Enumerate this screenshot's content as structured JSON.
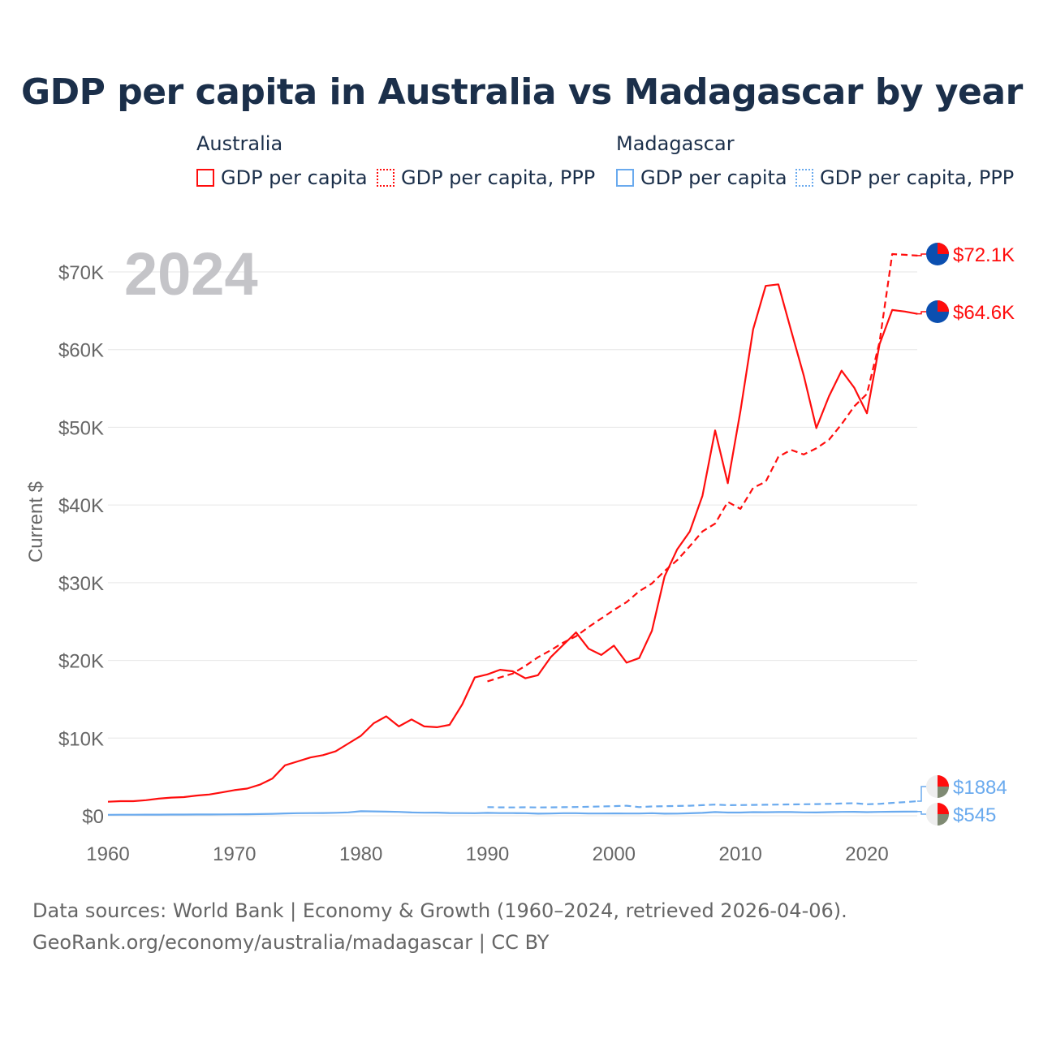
{
  "title": "GDP per capita in Australia vs Madagascar by year",
  "legend": {
    "groups": [
      {
        "name": "Australia",
        "items": [
          "GDP per capita",
          "GDP per capita, PPP"
        ],
        "color": "#ff0d0d"
      },
      {
        "name": "Madagascar",
        "items": [
          "GDP per capita",
          "GDP per capita, PPP"
        ],
        "color": "#6aaaee"
      }
    ]
  },
  "footer": [
    "Data sources: World Bank | Economy & Growth (1960–2024, retrieved 2026-04-06).",
    "GeoRank.org/economy/australia/madagascar | CC BY"
  ],
  "chart_data": {
    "type": "line",
    "title": "GDP per capita in Australia vs Madagascar by year",
    "year_label": "2024",
    "ylabel": "Current $",
    "xlim": [
      1960,
      2024
    ],
    "ylim": [
      0,
      72000
    ],
    "xticks": [
      1960,
      1970,
      1980,
      1990,
      2000,
      2010,
      2020
    ],
    "xtick_labels": [
      "1960",
      "1970",
      "1980",
      "1990",
      "2000",
      "2010",
      "2020"
    ],
    "yticks": [
      0,
      10000,
      20000,
      30000,
      40000,
      50000,
      60000,
      70000
    ],
    "ytick_labels": [
      "$0",
      "$10K",
      "$20K",
      "$30K",
      "$40K",
      "$50K",
      "$60K",
      "$70K"
    ],
    "series": [
      {
        "name": "Australia GDP per capita",
        "color": "#ff0d0d",
        "dash": false,
        "start": 1960,
        "end_label": "$64.6K",
        "values": [
          1810,
          1880,
          1880,
          2010,
          2200,
          2340,
          2400,
          2600,
          2740,
          3010,
          3300,
          3500,
          4000,
          4800,
          6500,
          7000,
          7500,
          7800,
          8300,
          9300,
          10300,
          11900,
          12800,
          11500,
          12400,
          11500,
          11400,
          11700,
          14300,
          17800,
          18200,
          18800,
          18600,
          17700,
          18100,
          20400,
          22000,
          23600,
          21500,
          20700,
          21900,
          19700,
          20300,
          23800,
          30800,
          34300,
          36600,
          41200,
          49600,
          42800,
          52100,
          62600,
          68200,
          68400,
          62500,
          56700,
          49900,
          54000,
          57300,
          55100,
          51800,
          60700,
          65100,
          64900,
          64600
        ]
      },
      {
        "name": "Australia GDP per capita, PPP",
        "color": "#ff0d0d",
        "dash": true,
        "start": 1990,
        "end_label": "$72.1K",
        "values": [
          17300,
          17800,
          18300,
          19300,
          20400,
          21300,
          22300,
          23100,
          24300,
          25400,
          26500,
          27500,
          28900,
          29900,
          31500,
          32900,
          34700,
          36600,
          37600,
          40400,
          39500,
          42200,
          43000,
          46200,
          47100,
          46500,
          47300,
          48400,
          50400,
          52700,
          54300,
          61000,
          72300,
          72200,
          72100
        ]
      },
      {
        "name": "Madagascar GDP per capita",
        "color": "#6aaaee",
        "dash": false,
        "start": 1960,
        "end_label": "$545",
        "values": [
          130,
          135,
          140,
          145,
          150,
          155,
          160,
          165,
          170,
          180,
          190,
          200,
          220,
          250,
          300,
          330,
          340,
          360,
          390,
          440,
          590,
          560,
          530,
          500,
          430,
          400,
          410,
          360,
          340,
          330,
          380,
          340,
          340,
          330,
          270,
          290,
          330,
          330,
          290,
          290,
          300,
          290,
          290,
          330,
          270,
          280,
          320,
          380,
          480,
          420,
          420,
          470,
          460,
          480,
          480,
          440,
          430,
          470,
          500,
          510,
          470,
          500,
          520,
          530,
          545
        ]
      },
      {
        "name": "Madagascar GDP per capita, PPP",
        "color": "#6aaaee",
        "dash": true,
        "start": 1990,
        "end_label": "$1884",
        "values": [
          1120,
          1090,
          1080,
          1100,
          1080,
          1090,
          1110,
          1130,
          1160,
          1200,
          1240,
          1300,
          1120,
          1200,
          1230,
          1260,
          1300,
          1370,
          1440,
          1370,
          1380,
          1400,
          1420,
          1440,
          1460,
          1480,
          1500,
          1540,
          1580,
          1620,
          1480,
          1540,
          1660,
          1760,
          1884
        ]
      }
    ]
  }
}
